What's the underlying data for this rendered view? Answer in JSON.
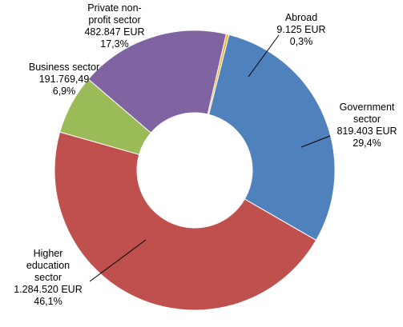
{
  "chart_data": {
    "type": "pie",
    "variant": "donut",
    "title": "",
    "slices": [
      {
        "key": "abroad",
        "lines": [
          "Abroad",
          "9.125 EUR",
          "0,3%"
        ],
        "value": 9125,
        "percent": 0.3,
        "color": "#f5b335"
      },
      {
        "key": "government",
        "lines": [
          "Government",
          "sector",
          "819.403 EUR",
          "29,4%"
        ],
        "value": 819403,
        "percent": 29.4,
        "color": "#4f81bd"
      },
      {
        "key": "higher-education",
        "lines": [
          "Higher",
          "education",
          "sector",
          "1.284.520 EUR",
          "46,1%"
        ],
        "value": 1284520,
        "percent": 46.1,
        "color": "#c0504d"
      },
      {
        "key": "business",
        "lines": [
          "Business sector",
          "191.769,49",
          "6,9%"
        ],
        "value": 191769.49,
        "percent": 6.9,
        "color": "#9bbb59"
      },
      {
        "key": "private-non-profit",
        "lines": [
          "Private non-",
          "profit sector",
          "482.847 EUR",
          "17,3%"
        ],
        "value": 482847,
        "percent": 17.3,
        "color": "#8064a2"
      }
    ]
  }
}
